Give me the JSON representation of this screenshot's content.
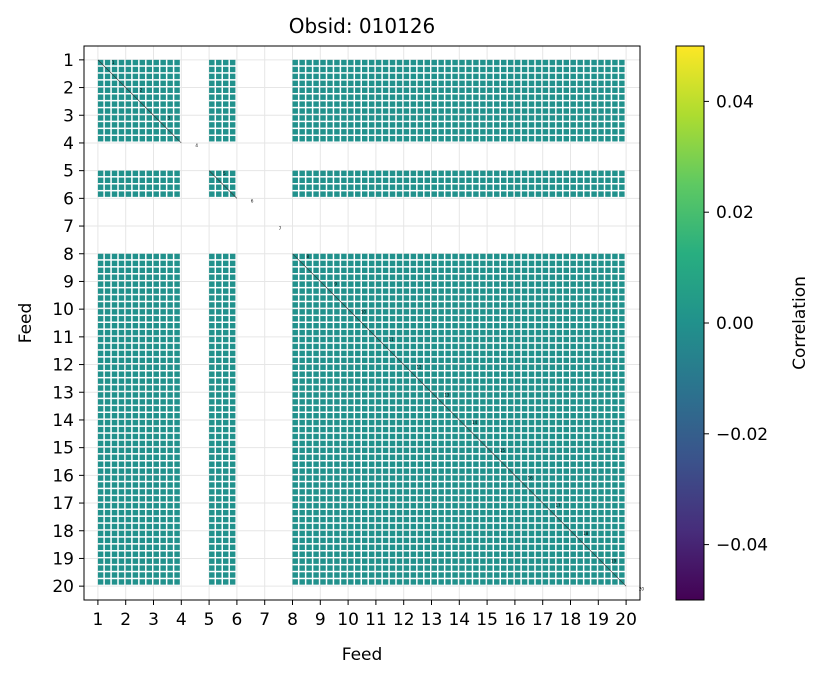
{
  "chart_data": {
    "type": "heatmap",
    "title": "Obsid: 010126",
    "xlabel": "Feed",
    "ylabel": "Feed",
    "x_ticks": [
      "1",
      "2",
      "3",
      "4",
      "5",
      "6",
      "7",
      "8",
      "9",
      "10",
      "11",
      "12",
      "13",
      "14",
      "15",
      "16",
      "17",
      "18",
      "19",
      "20"
    ],
    "y_ticks": [
      "1",
      "2",
      "3",
      "4",
      "5",
      "6",
      "7",
      "8",
      "9",
      "10",
      "11",
      "12",
      "13",
      "14",
      "15",
      "16",
      "17",
      "18",
      "19",
      "20"
    ],
    "active_feeds": [
      1,
      2,
      3,
      5,
      8,
      9,
      10,
      11,
      12,
      13,
      14,
      15,
      16,
      17,
      18,
      19
    ],
    "inactive_feeds": [
      4,
      6,
      7,
      20
    ],
    "subsamples_per_feed": 4,
    "dominant_value": 0.0,
    "diagonal_labels": [
      "1",
      "2",
      "3",
      "4",
      "5",
      "6",
      "7",
      "8",
      "9",
      "10",
      "11",
      "12",
      "13",
      "14",
      "15",
      "16",
      "17",
      "18",
      "19",
      "20"
    ],
    "grid": true,
    "colorbar": {
      "label": "Correlation",
      "colormap": "viridis",
      "vmin": -0.05,
      "vmax": 0.05,
      "ticks": [
        "0.04",
        "0.02",
        "0.00",
        "−0.02",
        "−0.04"
      ],
      "tick_values": [
        0.04,
        0.02,
        0.0,
        -0.02,
        -0.04
      ]
    },
    "colors": {
      "cell": "#21918c",
      "grid": "#e6e6e6",
      "axis": "#000000"
    }
  }
}
